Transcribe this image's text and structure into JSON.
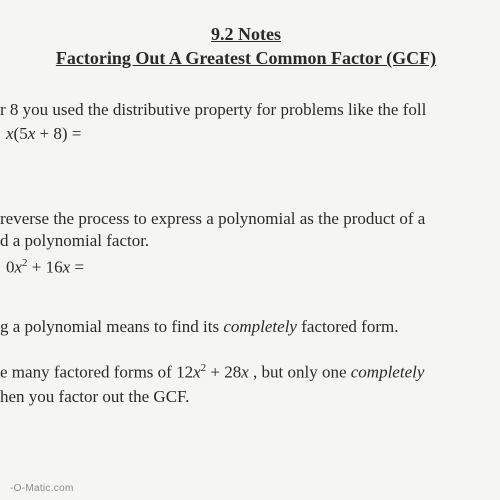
{
  "header": {
    "line1": "9.2 Notes",
    "line2": "Factoring Out A Greatest Common Factor (GCF)"
  },
  "para1": {
    "text": "r 8 you used the distributive property for problems like the foll",
    "math_lead": "x",
    "math_paren_open": "(5",
    "math_var1": "x",
    "math_rest": " + 8) ="
  },
  "para2": {
    "line1": "reverse the process to express a polynomial as the product of a",
    "line2": "d a polynomial factor.",
    "math_a": "0",
    "math_b": "x",
    "math_exp": "2",
    "math_c": " + 16",
    "math_d": "x",
    "math_e": " ="
  },
  "para3": {
    "pre": "g a polynomial means to find its ",
    "ital": "completely",
    "post": " factored form."
  },
  "para4": {
    "pre": "e many factored forms of 12",
    "var1": "x",
    "exp1": "2",
    "mid1": " + 28",
    "var2": "x",
    "mid2": " , but only one ",
    "ital": "completely",
    "tail": " ",
    "line2": "hen you factor out the GCF."
  },
  "watermark": "-O-Matic.com",
  "colors": {
    "bg": "#f5f5f3",
    "text": "#2a2a2a",
    "watermark": "#8a8a86"
  },
  "fonts": {
    "body_family": "Times New Roman",
    "title_size_pt": 18,
    "body_size_pt": 17
  }
}
